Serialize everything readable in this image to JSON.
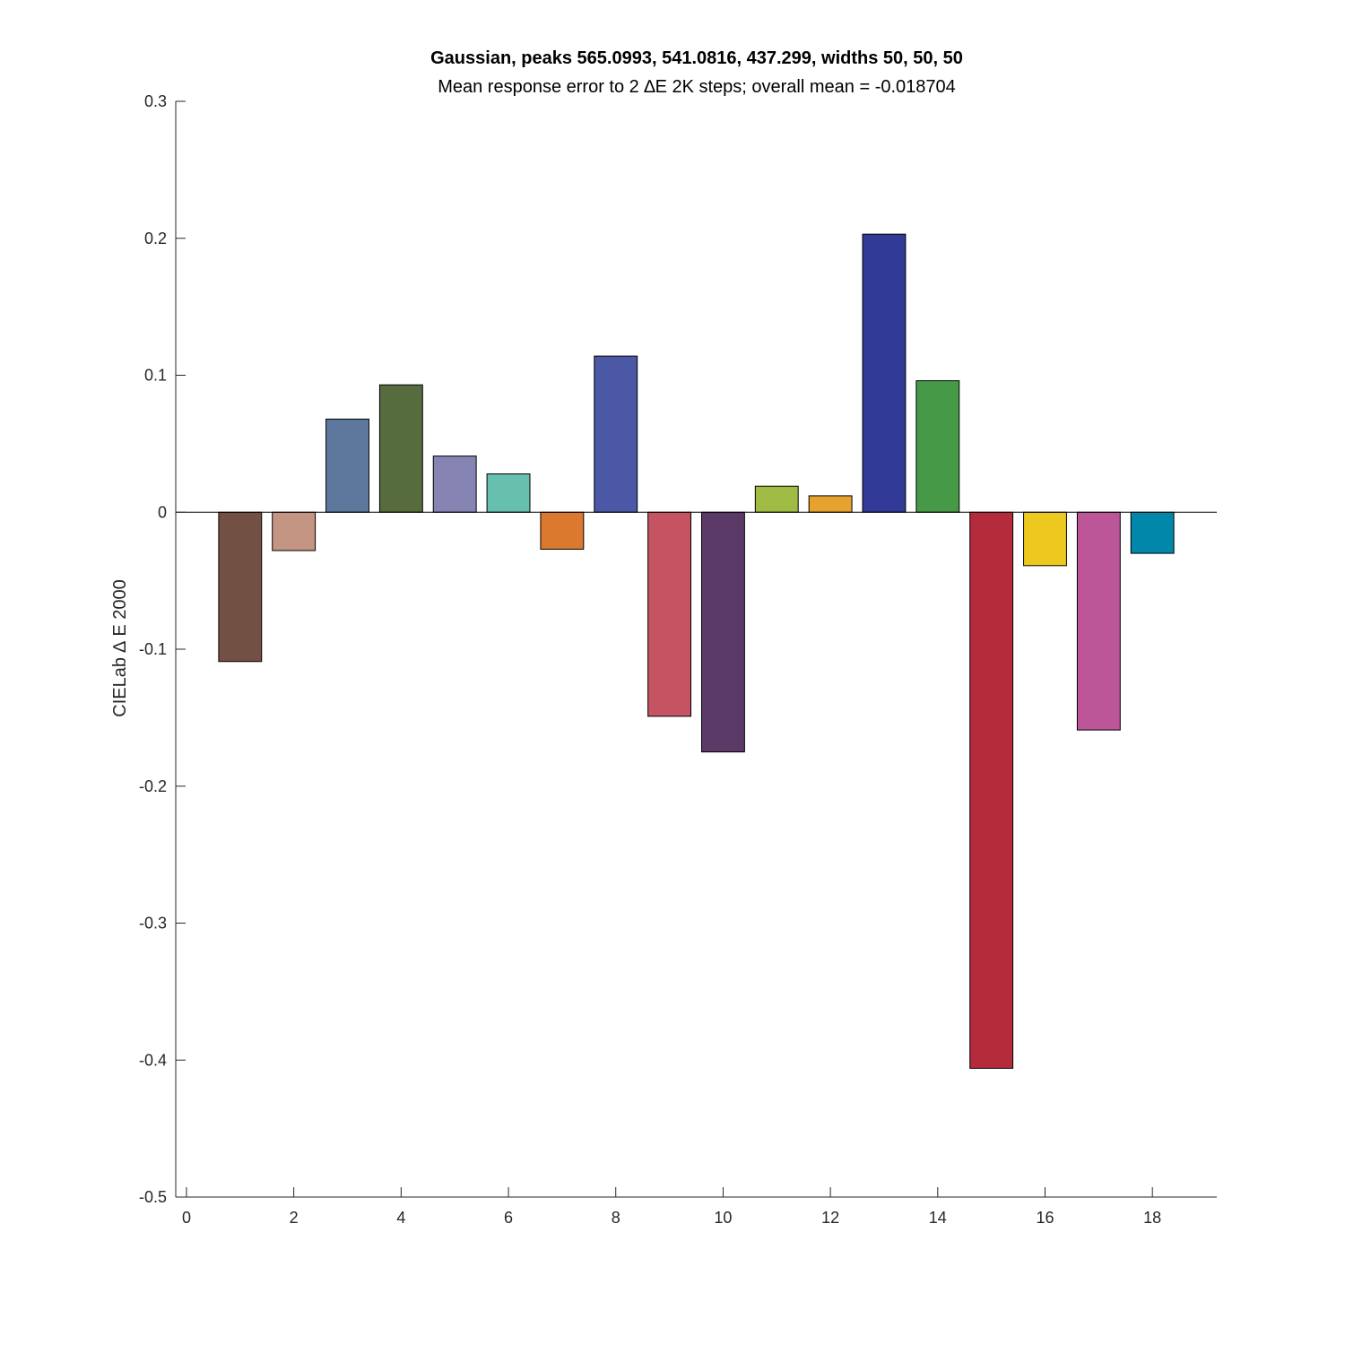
{
  "chart_data": {
    "type": "bar",
    "title": "Gaussian, peaks 565.0993, 541.0816, 437.299, widths 50, 50, 50",
    "subtitle": "Mean response error to 2 ∆E 2K steps; overall mean = -0.018704",
    "xlabel": "",
    "ylabel": "CIELab ∆ E 2000",
    "xlim": [
      -0.2,
      19.2
    ],
    "ylim": [
      -0.5,
      0.3
    ],
    "grid": false,
    "x_ticks": [
      0,
      2,
      4,
      6,
      8,
      10,
      12,
      14,
      16,
      18
    ],
    "x_tick_labels": [
      "0",
      "2",
      "4",
      "6",
      "8",
      "10",
      "12",
      "14",
      "16",
      "18"
    ],
    "y_ticks": [
      -0.5,
      -0.4,
      -0.3,
      -0.2,
      -0.1,
      0,
      0.1,
      0.2,
      0.3
    ],
    "y_tick_labels": [
      "-0.5",
      "-0.4",
      "-0.3",
      "-0.2",
      "-0.1",
      "0",
      "0.1",
      "0.2",
      "0.3"
    ],
    "x": [
      1,
      2,
      3,
      4,
      5,
      6,
      7,
      8,
      9,
      10,
      11,
      12,
      13,
      14,
      15,
      16,
      17,
      18
    ],
    "values": [
      -0.109,
      -0.028,
      0.068,
      0.093,
      0.041,
      0.028,
      -0.027,
      0.114,
      -0.149,
      -0.175,
      0.019,
      0.012,
      0.203,
      0.096,
      -0.406,
      -0.039,
      -0.159,
      -0.03
    ],
    "colors": [
      "#735044",
      "#c59583",
      "#5d789c",
      "#566b3e",
      "#8684b3",
      "#67bfad",
      "#db7a2e",
      "#4b58a6",
      "#c65362",
      "#5c3a68",
      "#a0bb44",
      "#e5a22f",
      "#313b97",
      "#469a47",
      "#b42c3c",
      "#edc91f",
      "#bd5698",
      "#0187aa"
    ]
  }
}
